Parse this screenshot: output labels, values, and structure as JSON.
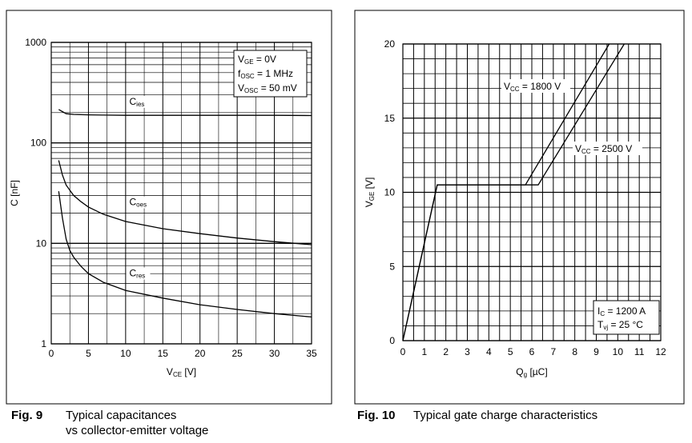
{
  "chart_data": [
    {
      "type": "line",
      "ylog": true,
      "xlabel_main": "V",
      "xlabel_sub": "CE",
      "xlabel_unit": "[V]",
      "ylabel": "C  [nF]",
      "xlim": [
        0,
        35
      ],
      "ylim": [
        1,
        1000
      ],
      "xticks": [
        0,
        5,
        10,
        15,
        20,
        25,
        30,
        35
      ],
      "yticks": [
        1,
        10,
        100,
        1000
      ],
      "grid": true,
      "conditions": [
        {
          "main": "V",
          "sub": "GE",
          "rest": " = 0V"
        },
        {
          "main": "f",
          "sub": "OSC",
          "rest": " = 1 MHz"
        },
        {
          "main": "V",
          "sub": "OSC",
          "rest": " = 50 mV"
        }
      ],
      "series": [
        {
          "name": "C",
          "sub": "ies",
          "label_x": 10.5,
          "label_y": 240,
          "x": [
            1,
            2,
            3,
            5,
            7,
            10,
            15,
            20,
            25,
            30,
            35
          ],
          "y": [
            215,
            195,
            192,
            190,
            189,
            188,
            188,
            188,
            188,
            188,
            187
          ]
        },
        {
          "name": "C",
          "sub": "oes",
          "label_x": 10.5,
          "label_y": 24,
          "x": [
            1,
            1.5,
            2,
            3,
            4,
            5,
            7,
            10,
            15,
            20,
            25,
            30,
            35
          ],
          "y": [
            67,
            48,
            38,
            30,
            26,
            23,
            19.5,
            16.5,
            14,
            12.5,
            11.3,
            10.4,
            9.7
          ]
        },
        {
          "name": "C",
          "sub": "res",
          "label_x": 10.5,
          "label_y": 4.7,
          "x": [
            1,
            1.5,
            2,
            2.5,
            3,
            4,
            5,
            7,
            10,
            15,
            20,
            25,
            30,
            35
          ],
          "y": [
            33,
            18,
            11,
            8.5,
            7.3,
            5.9,
            5.0,
            4.1,
            3.4,
            2.85,
            2.45,
            2.2,
            2.0,
            1.85
          ]
        }
      ]
    },
    {
      "type": "line",
      "xlabel_main": "Q",
      "xlabel_sub": "g",
      "xlabel_unit": "[µC]",
      "ylabel_main": "V",
      "ylabel_sub": "GE",
      "ylabel_unit": "[V]",
      "xlim": [
        0,
        12
      ],
      "ylim": [
        0,
        20
      ],
      "xticks": [
        0,
        1,
        2,
        3,
        4,
        5,
        6,
        7,
        8,
        9,
        10,
        11,
        12
      ],
      "yticks": [
        0,
        5,
        10,
        15,
        20
      ],
      "grid": true,
      "conditions": [
        {
          "main": "I",
          "sub": "C",
          "rest": " = 1200 A"
        },
        {
          "main": "T",
          "sub": "vj",
          "rest": " = 25 °C"
        }
      ],
      "series": [
        {
          "name": "V",
          "sub": "CC",
          "rest": " = 1800 V",
          "x": [
            0,
            1.6,
            5.7,
            9.6
          ],
          "y": [
            0,
            10.5,
            10.5,
            20
          ]
        },
        {
          "name": "V",
          "sub": "CC",
          "rest": " = 2500 V",
          "x": [
            0,
            1.6,
            6.3,
            10.3
          ],
          "y": [
            0,
            10.5,
            10.5,
            20
          ]
        }
      ]
    }
  ],
  "captions": [
    {
      "num": "Fig. 9",
      "line1": "Typical capacitances",
      "line2": "vs collector-emitter voltage"
    },
    {
      "num": "Fig. 10",
      "line1": "Typical gate charge characteristics"
    }
  ]
}
